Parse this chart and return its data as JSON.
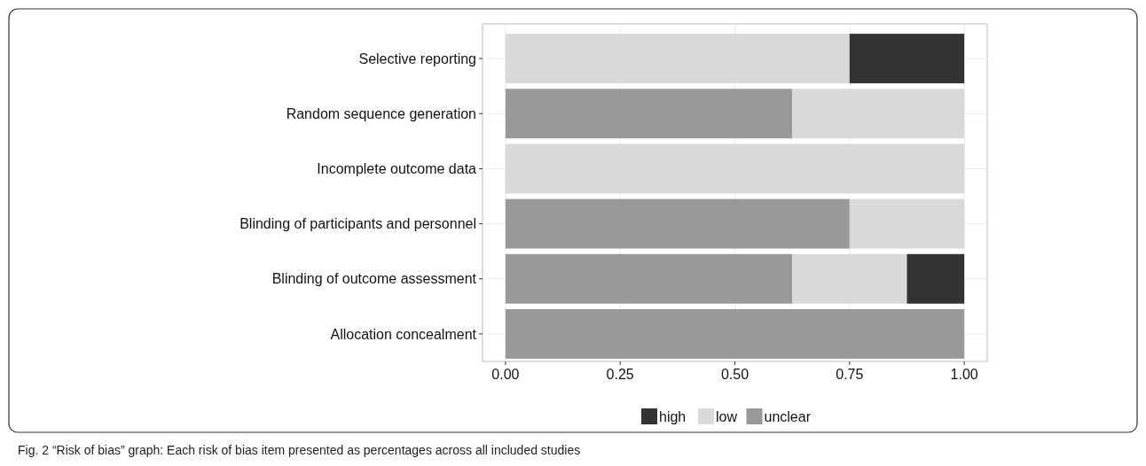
{
  "chart_data": {
    "type": "bar",
    "orientation": "horizontal",
    "stacked": true,
    "categories": [
      "Selective reporting",
      "Random sequence generation",
      "Incomplete outcome data",
      "Blinding of participants and personnel",
      "Blinding of outcome assessment",
      "Allocation concealment"
    ],
    "series": [
      {
        "name": "unclear",
        "color": "#999999",
        "values": [
          0,
          0.625,
          0,
          0.75,
          0.625,
          1
        ]
      },
      {
        "name": "low",
        "color": "#d9d9d9",
        "values": [
          0.75,
          0.375,
          1,
          0.25,
          0.25,
          0
        ]
      },
      {
        "name": "high",
        "color": "#333333",
        "values": [
          0.25,
          0,
          0,
          0,
          0.125,
          0
        ]
      }
    ],
    "xlim": [
      -0.05,
      1.05
    ],
    "xticks": [
      {
        "value": 0,
        "label": "0.00"
      },
      {
        "value": 0.25,
        "label": "0.25"
      },
      {
        "value": 0.5,
        "label": "0.50"
      },
      {
        "value": 0.75,
        "label": "0.75"
      },
      {
        "value": 1,
        "label": "1.00"
      }
    ],
    "grid": true,
    "legend": "bottom",
    "annotations": [
      "Fig. 2 “Risk of bias” graph: Each risk of bias item presented as percentages across all included studies"
    ]
  }
}
